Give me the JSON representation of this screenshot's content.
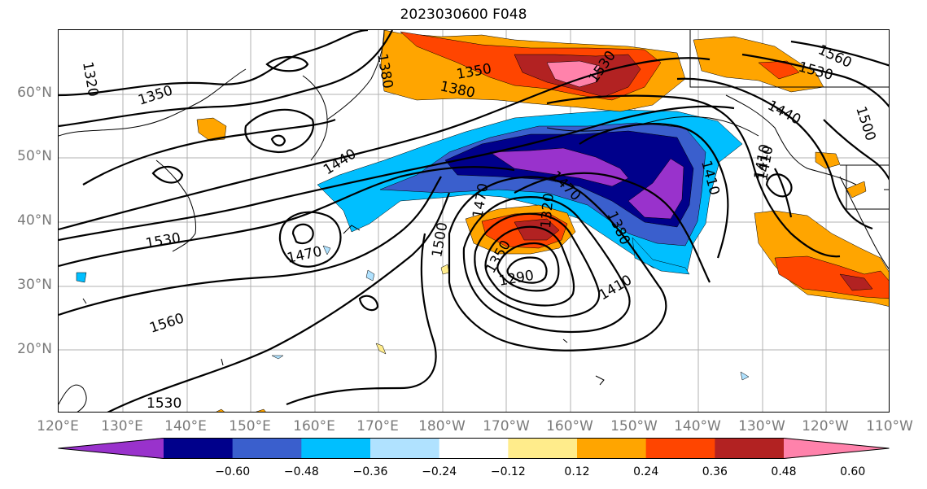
{
  "title": "2023030600 F048",
  "lat_labels": [
    "60°N",
    "50°N",
    "40°N",
    "30°N",
    "20°N"
  ],
  "lon_labels": [
    "120°E",
    "130°E",
    "140°E",
    "150°E",
    "160°E",
    "170°E",
    "180°W",
    "170°W",
    "160°W",
    "150°W",
    "140°W",
    "130°W",
    "120°W",
    "110°W"
  ],
  "colorbar": {
    "ticks": [
      "−0.60",
      "−0.48",
      "−0.36",
      "−0.24",
      "−0.12",
      "0.12",
      "0.24",
      "0.36",
      "0.48",
      "0.60"
    ],
    "colors": [
      "#9932cc",
      "#00008b",
      "#3a5fcd",
      "#00bfff",
      "#b0e2ff",
      "#ffffff",
      "#ffec8b",
      "#ffa500",
      "#ff4500",
      "#b22222",
      "#ff82ab"
    ]
  },
  "contour_labels": [
    "1320",
    "1350",
    "1350",
    "1380",
    "1380",
    "1530",
    "1560",
    "1530",
    "1440",
    "1500",
    "1410",
    "1410",
    "1440",
    "1470",
    "1530",
    "1470",
    "1560",
    "1530",
    "1500",
    "1470",
    "1350",
    "1320",
    "1290",
    "1380",
    "1410",
    "1410"
  ],
  "colors": {
    "contour": "#000000",
    "axis_text": "#7a7a7a",
    "grid": "#b0b0b0"
  }
}
